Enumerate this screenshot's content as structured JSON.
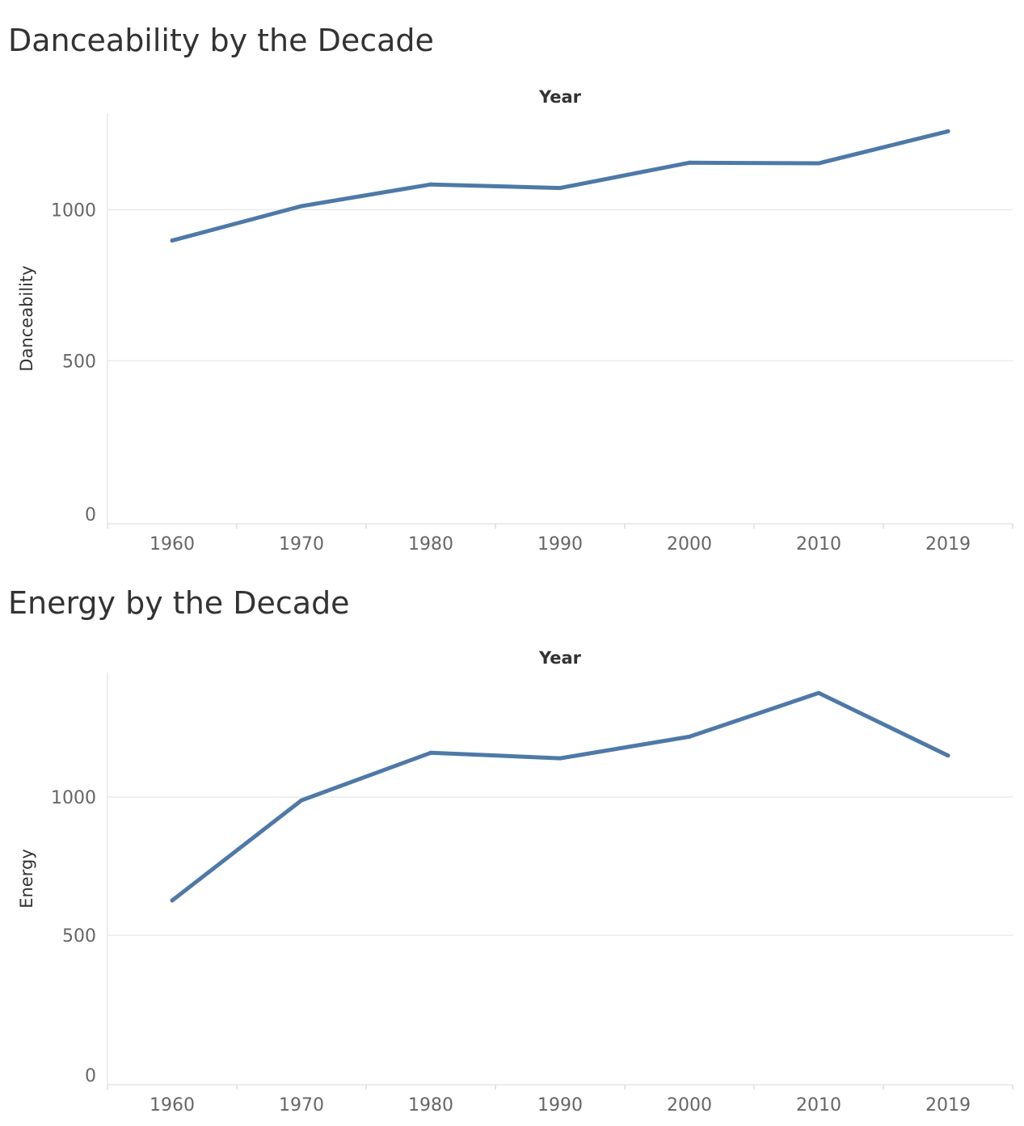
{
  "chart_data": [
    {
      "type": "line",
      "title": "Danceability by the Decade",
      "header_label": "Year",
      "xlabel": "",
      "ylabel": "Danceability",
      "categories": [
        "1960",
        "1970",
        "1980",
        "1990",
        "2000",
        "2010",
        "2019"
      ],
      "values": [
        898,
        1012,
        1084,
        1072,
        1156,
        1154,
        1260
      ],
      "yticks": [
        0,
        500,
        1000
      ],
      "ylim": [
        -40,
        1320
      ],
      "grid": true,
      "line_color": "#4e79a7"
    },
    {
      "type": "line",
      "title": "Energy by the Decade",
      "header_label": "Year",
      "xlabel": "",
      "ylabel": "Energy",
      "categories": [
        "1960",
        "1970",
        "1980",
        "1990",
        "2000",
        "2010",
        "2019"
      ],
      "values": [
        626,
        988,
        1160,
        1140,
        1218,
        1376,
        1150
      ],
      "yticks": [
        0,
        500,
        1000
      ],
      "ylim": [
        -40,
        1450
      ],
      "grid": true,
      "line_color": "#4e79a7"
    }
  ]
}
